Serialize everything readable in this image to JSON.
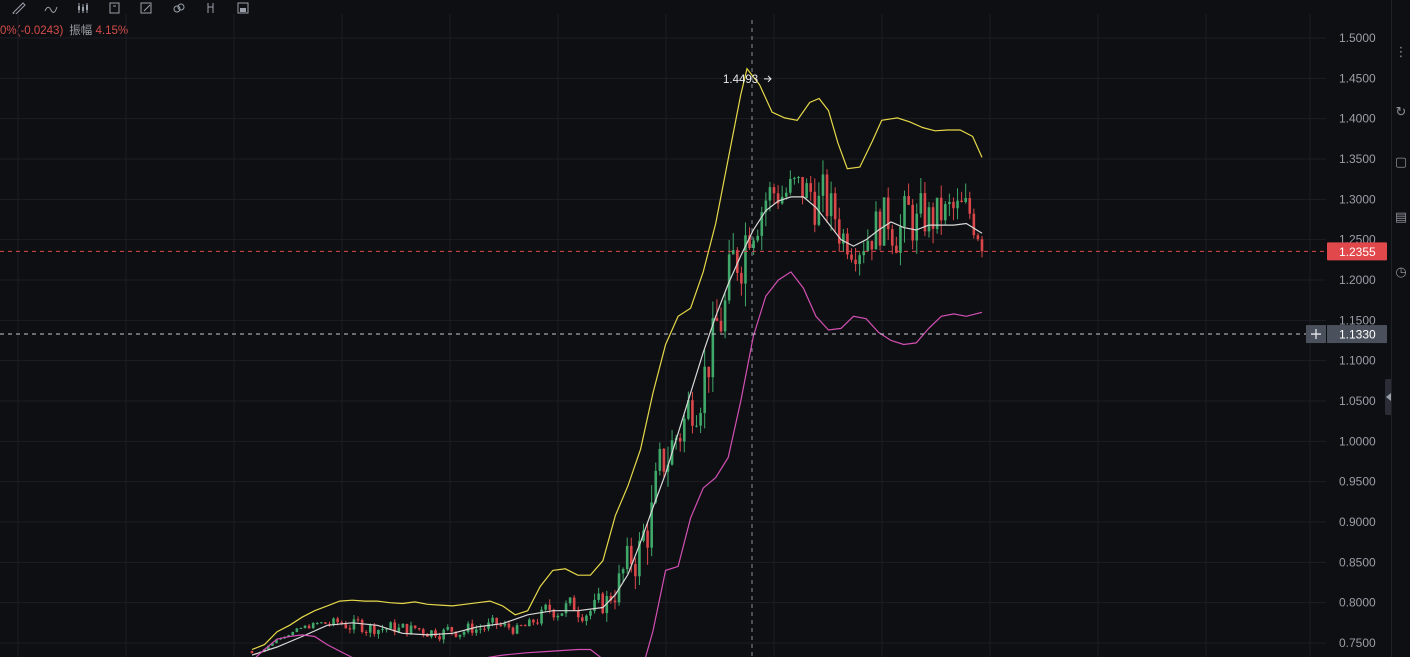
{
  "toolbar": {
    "icons": [
      "ruler-icon",
      "wave-pen-icon",
      "candles-icon",
      "note-icon",
      "edit-icon",
      "link-icon",
      "fork-icon",
      "save-icon"
    ]
  },
  "info": {
    "change_text": "0%(-0.0243)",
    "amplitude_label": "振幅",
    "amplitude_value": "4.15%"
  },
  "colors": {
    "background": "#0e0f12",
    "grid": "#1c1e24",
    "up": "#3fa86a",
    "down": "#d9474a",
    "upper_band": "#e6d84a",
    "middle_band": "#d8d8d8",
    "lower_band": "#d24fb4",
    "last_price": "#e0484b",
    "crosshair_label": "#4a505c"
  },
  "chart_data": {
    "type": "candlestick",
    "y_ticks": [
      "1.5000",
      "1.4500",
      "1.4000",
      "1.3500",
      "1.3000",
      "1.2500",
      "1.2000",
      "1.1500",
      "1.1000",
      "1.0500",
      "1.0000",
      "0.9500",
      "0.9000",
      "0.8500",
      "0.8000",
      "0.7500"
    ],
    "ylim": [
      0.735,
      1.52
    ],
    "grid": true,
    "last_price": 1.2355,
    "last_price_label": "1.2355",
    "crosshair_price": 1.133,
    "crosshair_label": "1.1330",
    "high_marker": {
      "value": 1.4493,
      "label": "1.4493"
    },
    "bollinger_upper": [
      [
        0.72,
        0.742
      ],
      [
        0.74,
        0.748
      ],
      [
        0.76,
        0.764
      ],
      [
        0.78,
        0.772
      ],
      [
        0.8,
        0.782
      ],
      [
        0.82,
        0.79
      ],
      [
        0.84,
        0.796
      ],
      [
        0.86,
        0.802
      ],
      [
        0.88,
        0.803
      ],
      [
        0.9,
        0.802
      ],
      [
        0.92,
        0.802
      ],
      [
        0.94,
        0.8
      ],
      [
        0.96,
        0.799
      ],
      [
        0.98,
        0.801
      ],
      [
        1.0,
        0.798
      ],
      [
        1.02,
        0.797
      ],
      [
        1.04,
        0.796
      ],
      [
        1.06,
        0.798
      ],
      [
        1.08,
        0.8
      ],
      [
        1.1,
        0.802
      ],
      [
        1.12,
        0.796
      ],
      [
        1.14,
        0.785
      ],
      [
        1.16,
        0.79
      ],
      [
        1.18,
        0.82
      ],
      [
        1.2,
        0.84
      ],
      [
        1.22,
        0.842
      ],
      [
        1.24,
        0.834
      ],
      [
        1.26,
        0.834
      ],
      [
        1.28,
        0.852
      ],
      [
        1.3,
        0.908
      ],
      [
        1.32,
        0.945
      ],
      [
        1.34,
        0.99
      ],
      [
        1.36,
        1.06
      ],
      [
        1.38,
        1.12
      ],
      [
        1.4,
        1.155
      ],
      [
        1.42,
        1.165
      ],
      [
        1.44,
        1.21
      ],
      [
        1.46,
        1.27
      ],
      [
        1.48,
        1.35
      ],
      [
        1.5,
        1.43
      ],
      [
        1.51,
        1.462
      ],
      [
        1.53,
        1.442
      ],
      [
        1.55,
        1.408
      ],
      [
        1.57,
        1.401
      ],
      [
        1.59,
        1.398
      ],
      [
        1.61,
        1.42
      ],
      [
        1.625,
        1.425
      ],
      [
        1.64,
        1.41
      ],
      [
        1.655,
        1.37
      ],
      [
        1.67,
        1.338
      ],
      [
        1.69,
        1.34
      ],
      [
        1.71,
        1.372
      ],
      [
        1.725,
        1.398
      ],
      [
        1.75,
        1.401
      ],
      [
        1.77,
        1.396
      ],
      [
        1.79,
        1.389
      ],
      [
        1.81,
        1.385
      ],
      [
        1.83,
        1.386
      ],
      [
        1.85,
        1.386
      ],
      [
        1.87,
        1.378
      ],
      [
        1.885,
        1.352
      ]
    ],
    "bollinger_middle": [
      [
        0.72,
        0.735
      ],
      [
        0.76,
        0.745
      ],
      [
        0.8,
        0.758
      ],
      [
        0.84,
        0.772
      ],
      [
        0.88,
        0.775
      ],
      [
        0.92,
        0.772
      ],
      [
        0.96,
        0.762
      ],
      [
        1.0,
        0.76
      ],
      [
        1.04,
        0.762
      ],
      [
        1.08,
        0.77
      ],
      [
        1.12,
        0.774
      ],
      [
        1.16,
        0.785
      ],
      [
        1.2,
        0.79
      ],
      [
        1.24,
        0.79
      ],
      [
        1.28,
        0.794
      ],
      [
        1.3,
        0.81
      ],
      [
        1.32,
        0.835
      ],
      [
        1.34,
        0.875
      ],
      [
        1.36,
        0.918
      ],
      [
        1.38,
        0.96
      ],
      [
        1.4,
        1.01
      ],
      [
        1.42,
        1.06
      ],
      [
        1.44,
        1.11
      ],
      [
        1.46,
        1.155
      ],
      [
        1.48,
        1.195
      ],
      [
        1.5,
        1.23
      ],
      [
        1.52,
        1.262
      ],
      [
        1.54,
        1.286
      ],
      [
        1.56,
        1.298
      ],
      [
        1.58,
        1.303
      ],
      [
        1.6,
        1.303
      ],
      [
        1.62,
        1.29
      ],
      [
        1.64,
        1.27
      ],
      [
        1.66,
        1.25
      ],
      [
        1.68,
        1.242
      ],
      [
        1.7,
        1.25
      ],
      [
        1.72,
        1.262
      ],
      [
        1.74,
        1.272
      ],
      [
        1.76,
        1.265
      ],
      [
        1.78,
        1.262
      ],
      [
        1.8,
        1.268
      ],
      [
        1.82,
        1.268
      ],
      [
        1.84,
        1.268
      ],
      [
        1.86,
        1.27
      ],
      [
        1.885,
        1.258
      ]
    ],
    "bollinger_lower": [
      [
        0.72,
        0.728
      ],
      [
        0.74,
        0.742
      ],
      [
        0.76,
        0.755
      ],
      [
        0.78,
        0.758
      ],
      [
        0.8,
        0.76
      ],
      [
        0.82,
        0.758
      ],
      [
        0.84,
        0.748
      ],
      [
        0.86,
        0.74
      ],
      [
        0.88,
        0.732
      ],
      [
        1.0,
        0.72
      ],
      [
        1.04,
        0.722
      ],
      [
        1.08,
        0.73
      ],
      [
        1.12,
        0.735
      ],
      [
        1.16,
        0.738
      ],
      [
        1.2,
        0.74
      ],
      [
        1.24,
        0.742
      ],
      [
        1.26,
        0.742
      ],
      [
        1.28,
        0.73
      ],
      [
        1.3,
        0.72
      ],
      [
        1.32,
        0.7
      ],
      [
        1.34,
        0.71
      ],
      [
        1.36,
        0.765
      ],
      [
        1.38,
        0.84
      ],
      [
        1.4,
        0.845
      ],
      [
        1.42,
        0.905
      ],
      [
        1.44,
        0.942
      ],
      [
        1.46,
        0.955
      ],
      [
        1.48,
        0.98
      ],
      [
        1.5,
        1.05
      ],
      [
        1.52,
        1.13
      ],
      [
        1.54,
        1.18
      ],
      [
        1.56,
        1.2
      ],
      [
        1.58,
        1.21
      ],
      [
        1.6,
        1.19
      ],
      [
        1.62,
        1.155
      ],
      [
        1.64,
        1.138
      ],
      [
        1.66,
        1.14
      ],
      [
        1.68,
        1.155
      ],
      [
        1.7,
        1.152
      ],
      [
        1.72,
        1.135
      ],
      [
        1.74,
        1.125
      ],
      [
        1.76,
        1.12
      ],
      [
        1.78,
        1.122
      ],
      [
        1.8,
        1.14
      ],
      [
        1.82,
        1.155
      ],
      [
        1.84,
        1.158
      ],
      [
        1.86,
        1.155
      ],
      [
        1.885,
        1.16
      ]
    ]
  }
}
